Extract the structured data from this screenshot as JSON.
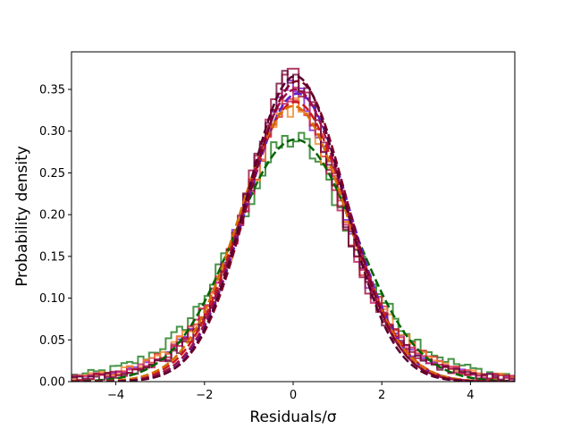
{
  "chart_data": {
    "type": "line",
    "title": "",
    "xlabel": "Residuals/σ",
    "ylabel": "Probability density",
    "xlim": [
      -5,
      5
    ],
    "ylim": [
      0,
      0.395
    ],
    "xticks": [
      -4,
      -2,
      0,
      2,
      4
    ],
    "yticks": [
      0.0,
      0.05,
      0.1,
      0.15,
      0.2,
      0.25,
      0.3,
      0.35
    ],
    "xtick_labels": [
      "−4",
      "−2",
      "0",
      "2",
      "4"
    ],
    "ytick_labels": [
      "0.00",
      "0.05",
      "0.10",
      "0.15",
      "0.20",
      "0.25",
      "0.30",
      "0.35"
    ],
    "grid": false,
    "legend": "none",
    "histogram_bin_width": 0.125,
    "series": [
      {
        "color": "#1a7a1a",
        "kind": "histogram",
        "peak_density": 0.29,
        "scale": 1.38
      },
      {
        "color": "#7a1fd6",
        "kind": "histogram",
        "peak_density": 0.345,
        "scale": 1.16
      },
      {
        "color": "#e0282b",
        "kind": "histogram",
        "peak_density": 0.335,
        "scale": 1.19
      },
      {
        "color": "#ee8a2a",
        "kind": "histogram",
        "peak_density": 0.33,
        "scale": 1.21
      },
      {
        "color": "#c2185b",
        "kind": "histogram",
        "peak_density": 0.35,
        "scale": 1.14
      },
      {
        "color": "#9c0d3a",
        "kind": "histogram",
        "peak_density": 0.36,
        "scale": 1.11
      },
      {
        "color": "#6a0b3b",
        "kind": "histogram",
        "peak_density": 0.365,
        "scale": 1.09
      }
    ],
    "fit_curves": [
      {
        "color": "#006400",
        "mean": 0.05,
        "peak_density": 0.29
      },
      {
        "color": "#5a1fc9",
        "mean": 0.1,
        "peak_density": 0.345
      },
      {
        "color": "#cc1a1a",
        "mean": 0.05,
        "peak_density": 0.335
      },
      {
        "color": "#d56e00",
        "mean": 0.0,
        "peak_density": 0.33
      },
      {
        "color": "#a0104c",
        "mean": 0.05,
        "peak_density": 0.35
      },
      {
        "color": "#800026",
        "mean": 0.1,
        "peak_density": 0.36
      },
      {
        "color": "#5a002e",
        "mean": 0.05,
        "peak_density": 0.366
      }
    ]
  }
}
